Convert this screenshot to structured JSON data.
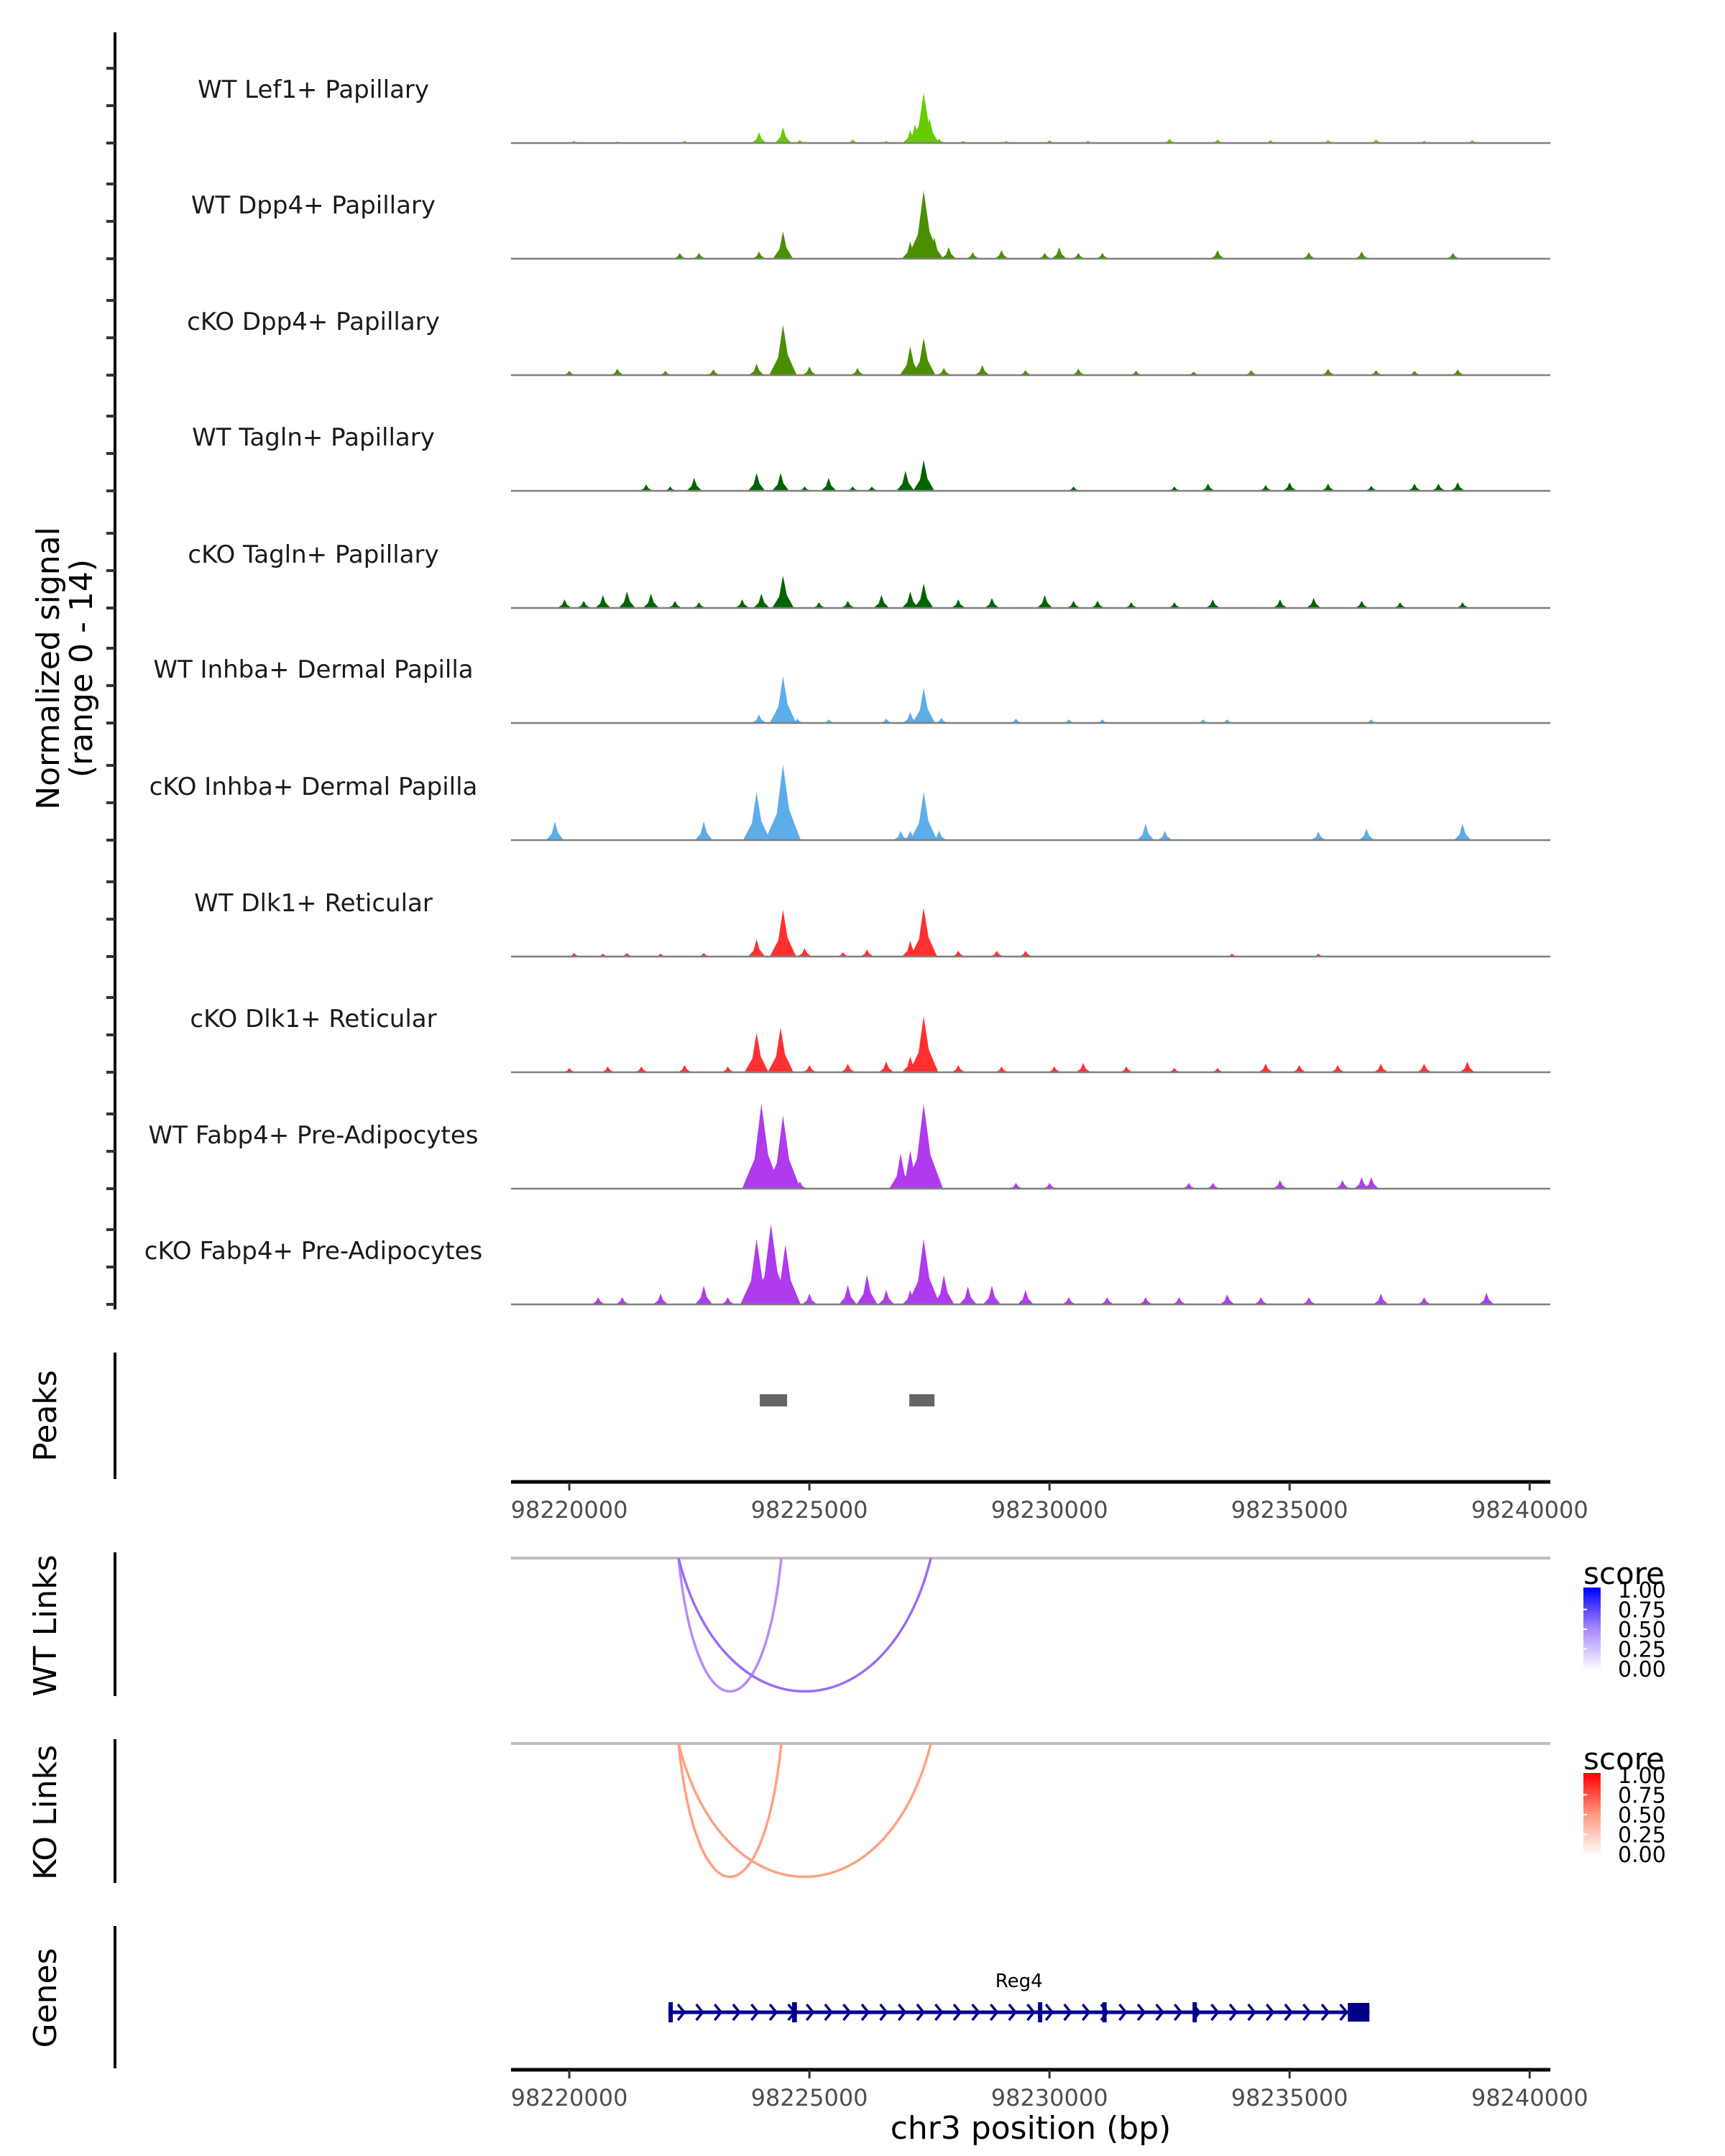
{
  "chart_data": {
    "type": "area",
    "title": "",
    "region": "chr3:98218787-98240430",
    "xlabel": "chr3 position (bp)",
    "ylabel": "Normalized signal\n(range 0 - 14)",
    "ylabel_lines": [
      "Normalized signal",
      "(range 0 - 14)"
    ],
    "ylim": [
      0,
      14
    ],
    "xlim": [
      98218787,
      98240430
    ],
    "x_ticks": [
      98220000,
      98225000,
      98230000,
      98235000,
      98240000
    ],
    "x_tick_labels": [
      "98220000",
      "98225000",
      "98230000",
      "98235000",
      "98240000"
    ],
    "grid": false,
    "tracks": [
      {
        "name": "WT Lef1+ Papillary",
        "color": "#66CC00",
        "peaks": [
          [
            98220100,
            0.3
          ],
          [
            98221000,
            0.2
          ],
          [
            98222400,
            0.3
          ],
          [
            98223950,
            1.5
          ],
          [
            98224450,
            2.2
          ],
          [
            98224800,
            0.4
          ],
          [
            98225900,
            0.5
          ],
          [
            98226600,
            0.3
          ],
          [
            98227100,
            1.8
          ],
          [
            98227200,
            2.6
          ],
          [
            98227380,
            7.0
          ],
          [
            98227500,
            3.5
          ],
          [
            98227700,
            0.6
          ],
          [
            98228200,
            0.3
          ],
          [
            98229100,
            0.3
          ],
          [
            98230000,
            0.4
          ],
          [
            98230800,
            0.3
          ],
          [
            98232500,
            0.6
          ],
          [
            98233500,
            0.5
          ],
          [
            98234600,
            0.4
          ],
          [
            98235800,
            0.4
          ],
          [
            98236800,
            0.5
          ],
          [
            98237800,
            0.3
          ],
          [
            98238800,
            0.4
          ]
        ]
      },
      {
        "name": "WT Dpp4+ Papillary",
        "color": "#4A8F00",
        "peaks": [
          [
            98222300,
            0.8
          ],
          [
            98222700,
            0.8
          ],
          [
            98223950,
            1.0
          ],
          [
            98224450,
            3.8
          ],
          [
            98227100,
            2.4
          ],
          [
            98227380,
            9.5
          ],
          [
            98227600,
            3.0
          ],
          [
            98227900,
            1.6
          ],
          [
            98228400,
            0.9
          ],
          [
            98229000,
            1.2
          ],
          [
            98229900,
            0.8
          ],
          [
            98230200,
            1.6
          ],
          [
            98230600,
            0.8
          ],
          [
            98231100,
            0.8
          ],
          [
            98233500,
            1.2
          ],
          [
            98235400,
            0.9
          ],
          [
            98236500,
            1.0
          ],
          [
            98238400,
            0.8
          ]
        ]
      },
      {
        "name": "cKO Dpp4+ Papillary",
        "color": "#4A8F00",
        "peaks": [
          [
            98220000,
            0.6
          ],
          [
            98221000,
            0.9
          ],
          [
            98222000,
            0.6
          ],
          [
            98223000,
            0.8
          ],
          [
            98223900,
            1.6
          ],
          [
            98224450,
            7.0
          ],
          [
            98225000,
            1.2
          ],
          [
            98226000,
            1.0
          ],
          [
            98227100,
            4.0
          ],
          [
            98227380,
            5.2
          ],
          [
            98227800,
            1.0
          ],
          [
            98228600,
            1.4
          ],
          [
            98229500,
            0.7
          ],
          [
            98230600,
            0.9
          ],
          [
            98231800,
            0.6
          ],
          [
            98233000,
            0.5
          ],
          [
            98234200,
            0.7
          ],
          [
            98235800,
            0.9
          ],
          [
            98236800,
            0.7
          ],
          [
            98237600,
            0.6
          ],
          [
            98238500,
            0.8
          ]
        ]
      },
      {
        "name": "WT Tagln+ Papillary",
        "color": "#006400",
        "peaks": [
          [
            98221600,
            0.9
          ],
          [
            98222100,
            0.6
          ],
          [
            98222600,
            1.8
          ],
          [
            98223900,
            2.5
          ],
          [
            98224400,
            2.5
          ],
          [
            98224900,
            0.6
          ],
          [
            98225400,
            1.8
          ],
          [
            98225900,
            0.6
          ],
          [
            98226300,
            0.6
          ],
          [
            98227000,
            2.8
          ],
          [
            98227380,
            4.3
          ],
          [
            98230500,
            0.6
          ],
          [
            98232600,
            0.6
          ],
          [
            98233300,
            1.0
          ],
          [
            98234500,
            0.8
          ],
          [
            98235000,
            1.2
          ],
          [
            98235800,
            1.0
          ],
          [
            98236700,
            0.7
          ],
          [
            98237600,
            1.0
          ],
          [
            98238100,
            1.0
          ],
          [
            98238500,
            1.2
          ]
        ]
      },
      {
        "name": "cKO Tagln+ Papillary",
        "color": "#006400",
        "peaks": [
          [
            98219900,
            1.2
          ],
          [
            98220300,
            1.0
          ],
          [
            98220700,
            1.8
          ],
          [
            98221200,
            2.3
          ],
          [
            98221700,
            2.0
          ],
          [
            98222200,
            1.0
          ],
          [
            98222700,
            0.8
          ],
          [
            98223600,
            1.2
          ],
          [
            98224000,
            2.0
          ],
          [
            98224450,
            4.5
          ],
          [
            98225200,
            0.8
          ],
          [
            98225800,
            1.0
          ],
          [
            98226500,
            1.8
          ],
          [
            98227100,
            2.3
          ],
          [
            98227380,
            3.4
          ],
          [
            98228100,
            1.2
          ],
          [
            98228800,
            1.4
          ],
          [
            98229900,
            1.8
          ],
          [
            98230500,
            1.0
          ],
          [
            98231000,
            1.0
          ],
          [
            98231700,
            0.8
          ],
          [
            98232600,
            0.8
          ],
          [
            98233400,
            1.2
          ],
          [
            98234800,
            1.2
          ],
          [
            98235500,
            1.4
          ],
          [
            98236500,
            1.0
          ],
          [
            98237300,
            0.8
          ],
          [
            98238600,
            0.8
          ]
        ]
      },
      {
        "name": "WT Inhba+ Dermal Papilla",
        "color": "#5DADE8",
        "peaks": [
          [
            98223950,
            1.2
          ],
          [
            98224450,
            6.5
          ],
          [
            98224750,
            0.6
          ],
          [
            98225400,
            0.5
          ],
          [
            98226600,
            0.6
          ],
          [
            98227100,
            1.5
          ],
          [
            98227380,
            4.9
          ],
          [
            98227750,
            0.7
          ],
          [
            98229300,
            0.6
          ],
          [
            98230400,
            0.5
          ],
          [
            98231100,
            0.5
          ],
          [
            98233200,
            0.5
          ],
          [
            98233700,
            0.5
          ],
          [
            98236700,
            0.5
          ]
        ]
      },
      {
        "name": "cKO Inhba+ Dermal Papilla",
        "color": "#5DADE8",
        "peaks": [
          [
            98219700,
            2.6
          ],
          [
            98222800,
            2.6
          ],
          [
            98223900,
            6.7
          ],
          [
            98224450,
            10.5
          ],
          [
            98226900,
            1.3
          ],
          [
            98227100,
            1.3
          ],
          [
            98227380,
            6.7
          ],
          [
            98227700,
            1.3
          ],
          [
            98232000,
            2.3
          ],
          [
            98232400,
            1.3
          ],
          [
            98235600,
            1.2
          ],
          [
            98236600,
            1.6
          ],
          [
            98238600,
            2.3
          ]
        ]
      },
      {
        "name": "WT Dlk1+ Reticular",
        "color": "#FF3030",
        "peaks": [
          [
            98220100,
            0.5
          ],
          [
            98220700,
            0.4
          ],
          [
            98221200,
            0.5
          ],
          [
            98221900,
            0.4
          ],
          [
            98222800,
            0.5
          ],
          [
            98223900,
            2.4
          ],
          [
            98224450,
            6.5
          ],
          [
            98224900,
            1.2
          ],
          [
            98225700,
            0.6
          ],
          [
            98226200,
            1.0
          ],
          [
            98227100,
            2.2
          ],
          [
            98227380,
            6.8
          ],
          [
            98228100,
            0.8
          ],
          [
            98228900,
            0.8
          ],
          [
            98229500,
            0.8
          ],
          [
            98233800,
            0.4
          ],
          [
            98235600,
            0.4
          ]
        ]
      },
      {
        "name": "cKO Dlk1+ Reticular",
        "color": "#FF3030",
        "peaks": [
          [
            98220000,
            0.6
          ],
          [
            98220800,
            0.8
          ],
          [
            98221500,
            0.8
          ],
          [
            98222400,
            1.0
          ],
          [
            98223300,
            0.8
          ],
          [
            98223900,
            5.5
          ],
          [
            98224400,
            6.2
          ],
          [
            98225000,
            1.0
          ],
          [
            98225800,
            1.2
          ],
          [
            98226600,
            1.5
          ],
          [
            98227100,
            2.2
          ],
          [
            98227380,
            7.8
          ],
          [
            98228100,
            1.0
          ],
          [
            98229000,
            0.8
          ],
          [
            98230100,
            0.8
          ],
          [
            98230700,
            1.3
          ],
          [
            98231600,
            0.8
          ],
          [
            98232600,
            0.6
          ],
          [
            98233500,
            0.6
          ],
          [
            98234500,
            1.2
          ],
          [
            98235200,
            1.0
          ],
          [
            98236000,
            1.0
          ],
          [
            98236900,
            1.2
          ],
          [
            98237800,
            1.2
          ],
          [
            98238700,
            1.5
          ]
        ]
      },
      {
        "name": "WT Fabp4+ Pre-Adipocytes",
        "color": "#B03AEE",
        "peaks": [
          [
            98224000,
            11.8
          ],
          [
            98224450,
            10.2
          ],
          [
            98224800,
            1.0
          ],
          [
            98226900,
            4.9
          ],
          [
            98227100,
            5.3
          ],
          [
            98227380,
            11.8
          ],
          [
            98229300,
            0.8
          ],
          [
            98230000,
            0.8
          ],
          [
            98232900,
            0.8
          ],
          [
            98233400,
            0.8
          ],
          [
            98234800,
            1.2
          ],
          [
            98236100,
            1.2
          ],
          [
            98236500,
            1.6
          ],
          [
            98236700,
            1.6
          ]
        ]
      },
      {
        "name": "cKO Fabp4+ Pre-Adipocytes",
        "color": "#B03AEE",
        "peaks": [
          [
            98220600,
            1.0
          ],
          [
            98221100,
            1.0
          ],
          [
            98221900,
            1.5
          ],
          [
            98222800,
            2.6
          ],
          [
            98223300,
            1.0
          ],
          [
            98223900,
            9.1
          ],
          [
            98224200,
            11.2
          ],
          [
            98224500,
            8.3
          ],
          [
            98225000,
            1.5
          ],
          [
            98225800,
            2.7
          ],
          [
            98226200,
            4.1
          ],
          [
            98226600,
            2.0
          ],
          [
            98227100,
            2.0
          ],
          [
            98227380,
            9.1
          ],
          [
            98227800,
            4.1
          ],
          [
            98228300,
            2.5
          ],
          [
            98228800,
            2.6
          ],
          [
            98229500,
            2.0
          ],
          [
            98230400,
            1.0
          ],
          [
            98231200,
            1.0
          ],
          [
            98232000,
            1.0
          ],
          [
            98232700,
            1.0
          ],
          [
            98233700,
            1.4
          ],
          [
            98234400,
            1.0
          ],
          [
            98235400,
            1.0
          ],
          [
            98236900,
            1.5
          ],
          [
            98237800,
            1.0
          ],
          [
            98239100,
            1.6
          ]
        ]
      }
    ],
    "peaks_track": {
      "label": "Peaks",
      "color": "#666666",
      "regions": [
        [
          98223967,
          98224536
        ],
        [
          98227081,
          98227605
        ]
      ]
    },
    "links_tracks": [
      {
        "label": "WT Links",
        "baseline_color": "#BEBEBE",
        "legend": {
          "title": "score",
          "low_color": "#FFFFFF",
          "high_color": "#0000FF",
          "ticks": [
            "1.00",
            "0.75",
            "0.50",
            "0.25",
            "0.00"
          ],
          "range": [
            0,
            1
          ]
        },
        "links": [
          {
            "start": 98222275,
            "end": 98224416,
            "score": 0.45
          },
          {
            "start": 98222275,
            "end": 98227530,
            "score": 0.58
          }
        ]
      },
      {
        "label": "KO Links",
        "baseline_color": "#BEBEBE",
        "legend": {
          "title": "score",
          "low_color": "#FFFFFF",
          "high_color": "#FF0000",
          "ticks": [
            "1.00",
            "0.75",
            "0.50",
            "0.25",
            "0.00"
          ],
          "range": [
            0,
            1
          ]
        },
        "links": [
          {
            "start": 98222275,
            "end": 98224416,
            "score": 0.45
          },
          {
            "start": 98222275,
            "end": 98227530,
            "score": 0.45
          }
        ]
      }
    ],
    "genes_track": {
      "label": "Genes",
      "color": "#00008B",
      "genes": [
        {
          "name": "Reg4",
          "strand": "+",
          "start": 98222066,
          "end": 98236662,
          "exons": [
            [
              98222066,
              98222110
            ],
            [
              98224640,
              98224740
            ],
            [
              98229760,
              98229820
            ],
            [
              98231100,
              98231160
            ],
            [
              98232980,
              98233020
            ],
            [
              98236213,
              98236662
            ]
          ]
        }
      ]
    }
  }
}
